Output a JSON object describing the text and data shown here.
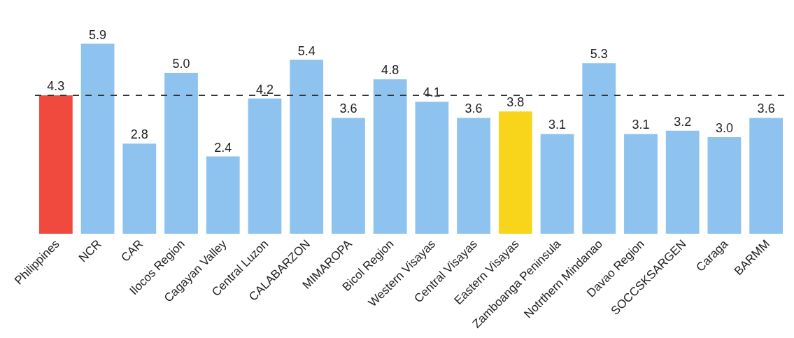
{
  "chart_data": {
    "type": "bar",
    "categories": [
      "Philippines",
      "NCR",
      "CAR",
      "Ilocos Region",
      "Cagayan Valley",
      "Central Luzon",
      "CALABARZON",
      "MIMAROPA",
      "Bicol Region",
      "Western Visayas",
      "Central Visayas",
      "Eastern Visayas",
      "Zamboanga Peninsula",
      "Notrthern Mindanao",
      "Davao Region",
      "SOCCSKSARGEN",
      "Caraga",
      "BARMM"
    ],
    "values": [
      4.3,
      5.9,
      2.8,
      5.0,
      2.4,
      4.2,
      5.4,
      3.6,
      4.8,
      4.1,
      3.6,
      3.8,
      3.1,
      5.3,
      3.1,
      3.2,
      3.0,
      3.6
    ],
    "colors": [
      "#f04a3e",
      "#8ec3ef",
      "#8ec3ef",
      "#8ec3ef",
      "#8ec3ef",
      "#8ec3ef",
      "#8ec3ef",
      "#8ec3ef",
      "#8ec3ef",
      "#8ec3ef",
      "#8ec3ef",
      "#f8d41a",
      "#8ec3ef",
      "#8ec3ef",
      "#8ec3ef",
      "#8ec3ef",
      "#8ec3ef",
      "#8ec3ef"
    ],
    "value_labels": [
      "4.3",
      "5.9",
      "2.8",
      "5.0",
      "2.4",
      "4.2",
      "5.4",
      "3.6",
      "4.8",
      "4.1",
      "3.6",
      "3.8",
      "3.1",
      "5.3",
      "3.1",
      "3.2",
      "3.0",
      "3.6"
    ],
    "ref_lines": [
      {
        "axis": "y",
        "value": 4.3,
        "label": null,
        "color": "#333333",
        "line_style": "dashed"
      }
    ],
    "tick_labels": "x"
  }
}
